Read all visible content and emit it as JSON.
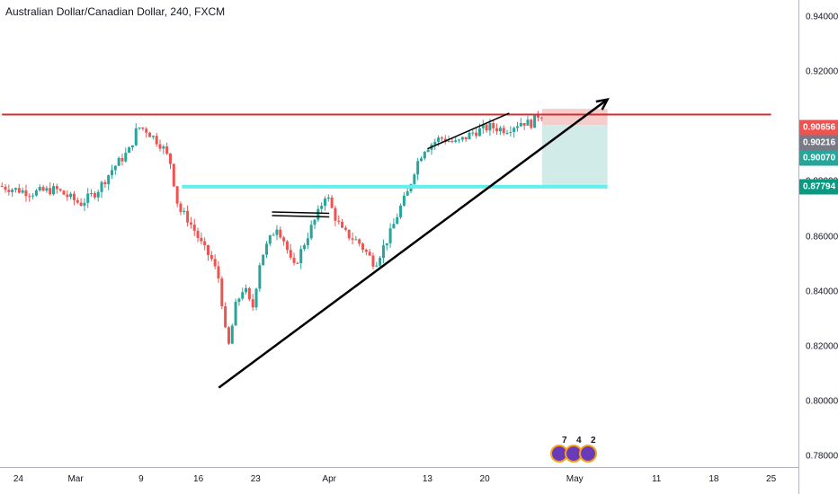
{
  "header": {
    "title": "Australian Dollar/Canadian Dollar, 240, FXCM"
  },
  "colors": {
    "up": "#26a69a",
    "down": "#ef5350",
    "resistance": "#d32f2f",
    "support": "#5ff0ef",
    "trendline": "#000000",
    "stop_zone": "#f5c4c4",
    "target_zone": "#cbe9e6"
  },
  "price_tags": {
    "upper": {
      "label": "0.90656",
      "color": "#ef5350"
    },
    "current": {
      "label": "0.90216",
      "color": "#787b86"
    },
    "lower": {
      "label": "0.90070",
      "color": "#26a69a"
    },
    "support": {
      "label": "0.87794",
      "color": "#089981"
    }
  },
  "event_badges": [
    "7",
    "4",
    "2"
  ],
  "chart_data": {
    "type": "candlestick",
    "symbol": "AUDCAD",
    "timeframe": "240",
    "source": "FXCM",
    "title": "Australian Dollar/Canadian Dollar, 240, FXCM",
    "ylim": [
      0.778,
      0.95
    ],
    "y_ticks": [
      0.94,
      0.92,
      0.9,
      0.88,
      0.86,
      0.84,
      0.82,
      0.8,
      0.78
    ],
    "y_tick_labels": [
      "0.94000",
      "0.92000",
      "0.90000",
      "0.88000",
      "0.86000",
      "0.84000",
      "0.82000",
      "0.80000",
      "0.78000"
    ],
    "x_ticks": [
      "24",
      "Mar",
      "9",
      "16",
      "23",
      "Apr",
      "13",
      "20",
      "May",
      "11",
      "18",
      "25"
    ],
    "x_tick_days": [
      -6,
      1,
      9,
      16,
      23,
      32,
      44,
      51,
      62,
      72,
      79,
      86
    ],
    "grid": false,
    "price_path": [
      [
        -8,
        0.8785
      ],
      [
        -4,
        0.876
      ],
      [
        -1,
        0.8772
      ],
      [
        2,
        0.872
      ],
      [
        4,
        0.8765
      ],
      [
        6,
        0.885
      ],
      [
        8,
        0.8915
      ],
      [
        9,
        0.9
      ],
      [
        10,
        0.899
      ],
      [
        11,
        0.896
      ],
      [
        12,
        0.893
      ],
      [
        13,
        0.887
      ],
      [
        14,
        0.87
      ],
      [
        15,
        0.867
      ],
      [
        16,
        0.862
      ],
      [
        17,
        0.856
      ],
      [
        18,
        0.852
      ],
      [
        19,
        0.844
      ],
      [
        20,
        0.818
      ],
      [
        21,
        0.835
      ],
      [
        22,
        0.842
      ],
      [
        23,
        0.833
      ],
      [
        24,
        0.852
      ],
      [
        26,
        0.864
      ],
      [
        27,
        0.858
      ],
      [
        28,
        0.848
      ],
      [
        29,
        0.855
      ],
      [
        30,
        0.862
      ],
      [
        31,
        0.868
      ],
      [
        32,
        0.876
      ],
      [
        33,
        0.868
      ],
      [
        34,
        0.862
      ],
      [
        36,
        0.858
      ],
      [
        38,
        0.85
      ],
      [
        40,
        0.862
      ],
      [
        41,
        0.87
      ],
      [
        42,
        0.876
      ],
      [
        43,
        0.886
      ],
      [
        44,
        0.892
      ],
      [
        46,
        0.896
      ],
      [
        48,
        0.894
      ],
      [
        50,
        0.898
      ],
      [
        52,
        0.9
      ],
      [
        54,
        0.899
      ],
      [
        56,
        0.902
      ],
      [
        57,
        0.901
      ],
      [
        58,
        0.9045
      ]
    ],
    "horizontal_levels": [
      {
        "name": "resistance",
        "price": 0.9045,
        "from_day": -8,
        "to_day": 86
      },
      {
        "name": "support",
        "price": 0.8782,
        "from_day": 14,
        "to_day": 66
      }
    ],
    "trendlines": [
      {
        "name": "rising-trendline",
        "from": [
          18.5,
          0.805
        ],
        "to": [
          66,
          0.91
        ],
        "arrow": true
      },
      {
        "name": "upper-channel-line",
        "from": [
          44,
          0.892
        ],
        "to": [
          54,
          0.905
        ],
        "arrow": false
      },
      {
        "name": "small-double-line",
        "from": [
          25,
          0.869
        ],
        "to": [
          32,
          0.8685
        ],
        "arrow": false
      }
    ],
    "position_tool": {
      "entry": 0.9007,
      "stop": 0.90656,
      "target": 0.87794,
      "from_day": 58,
      "to_day": 66
    }
  }
}
